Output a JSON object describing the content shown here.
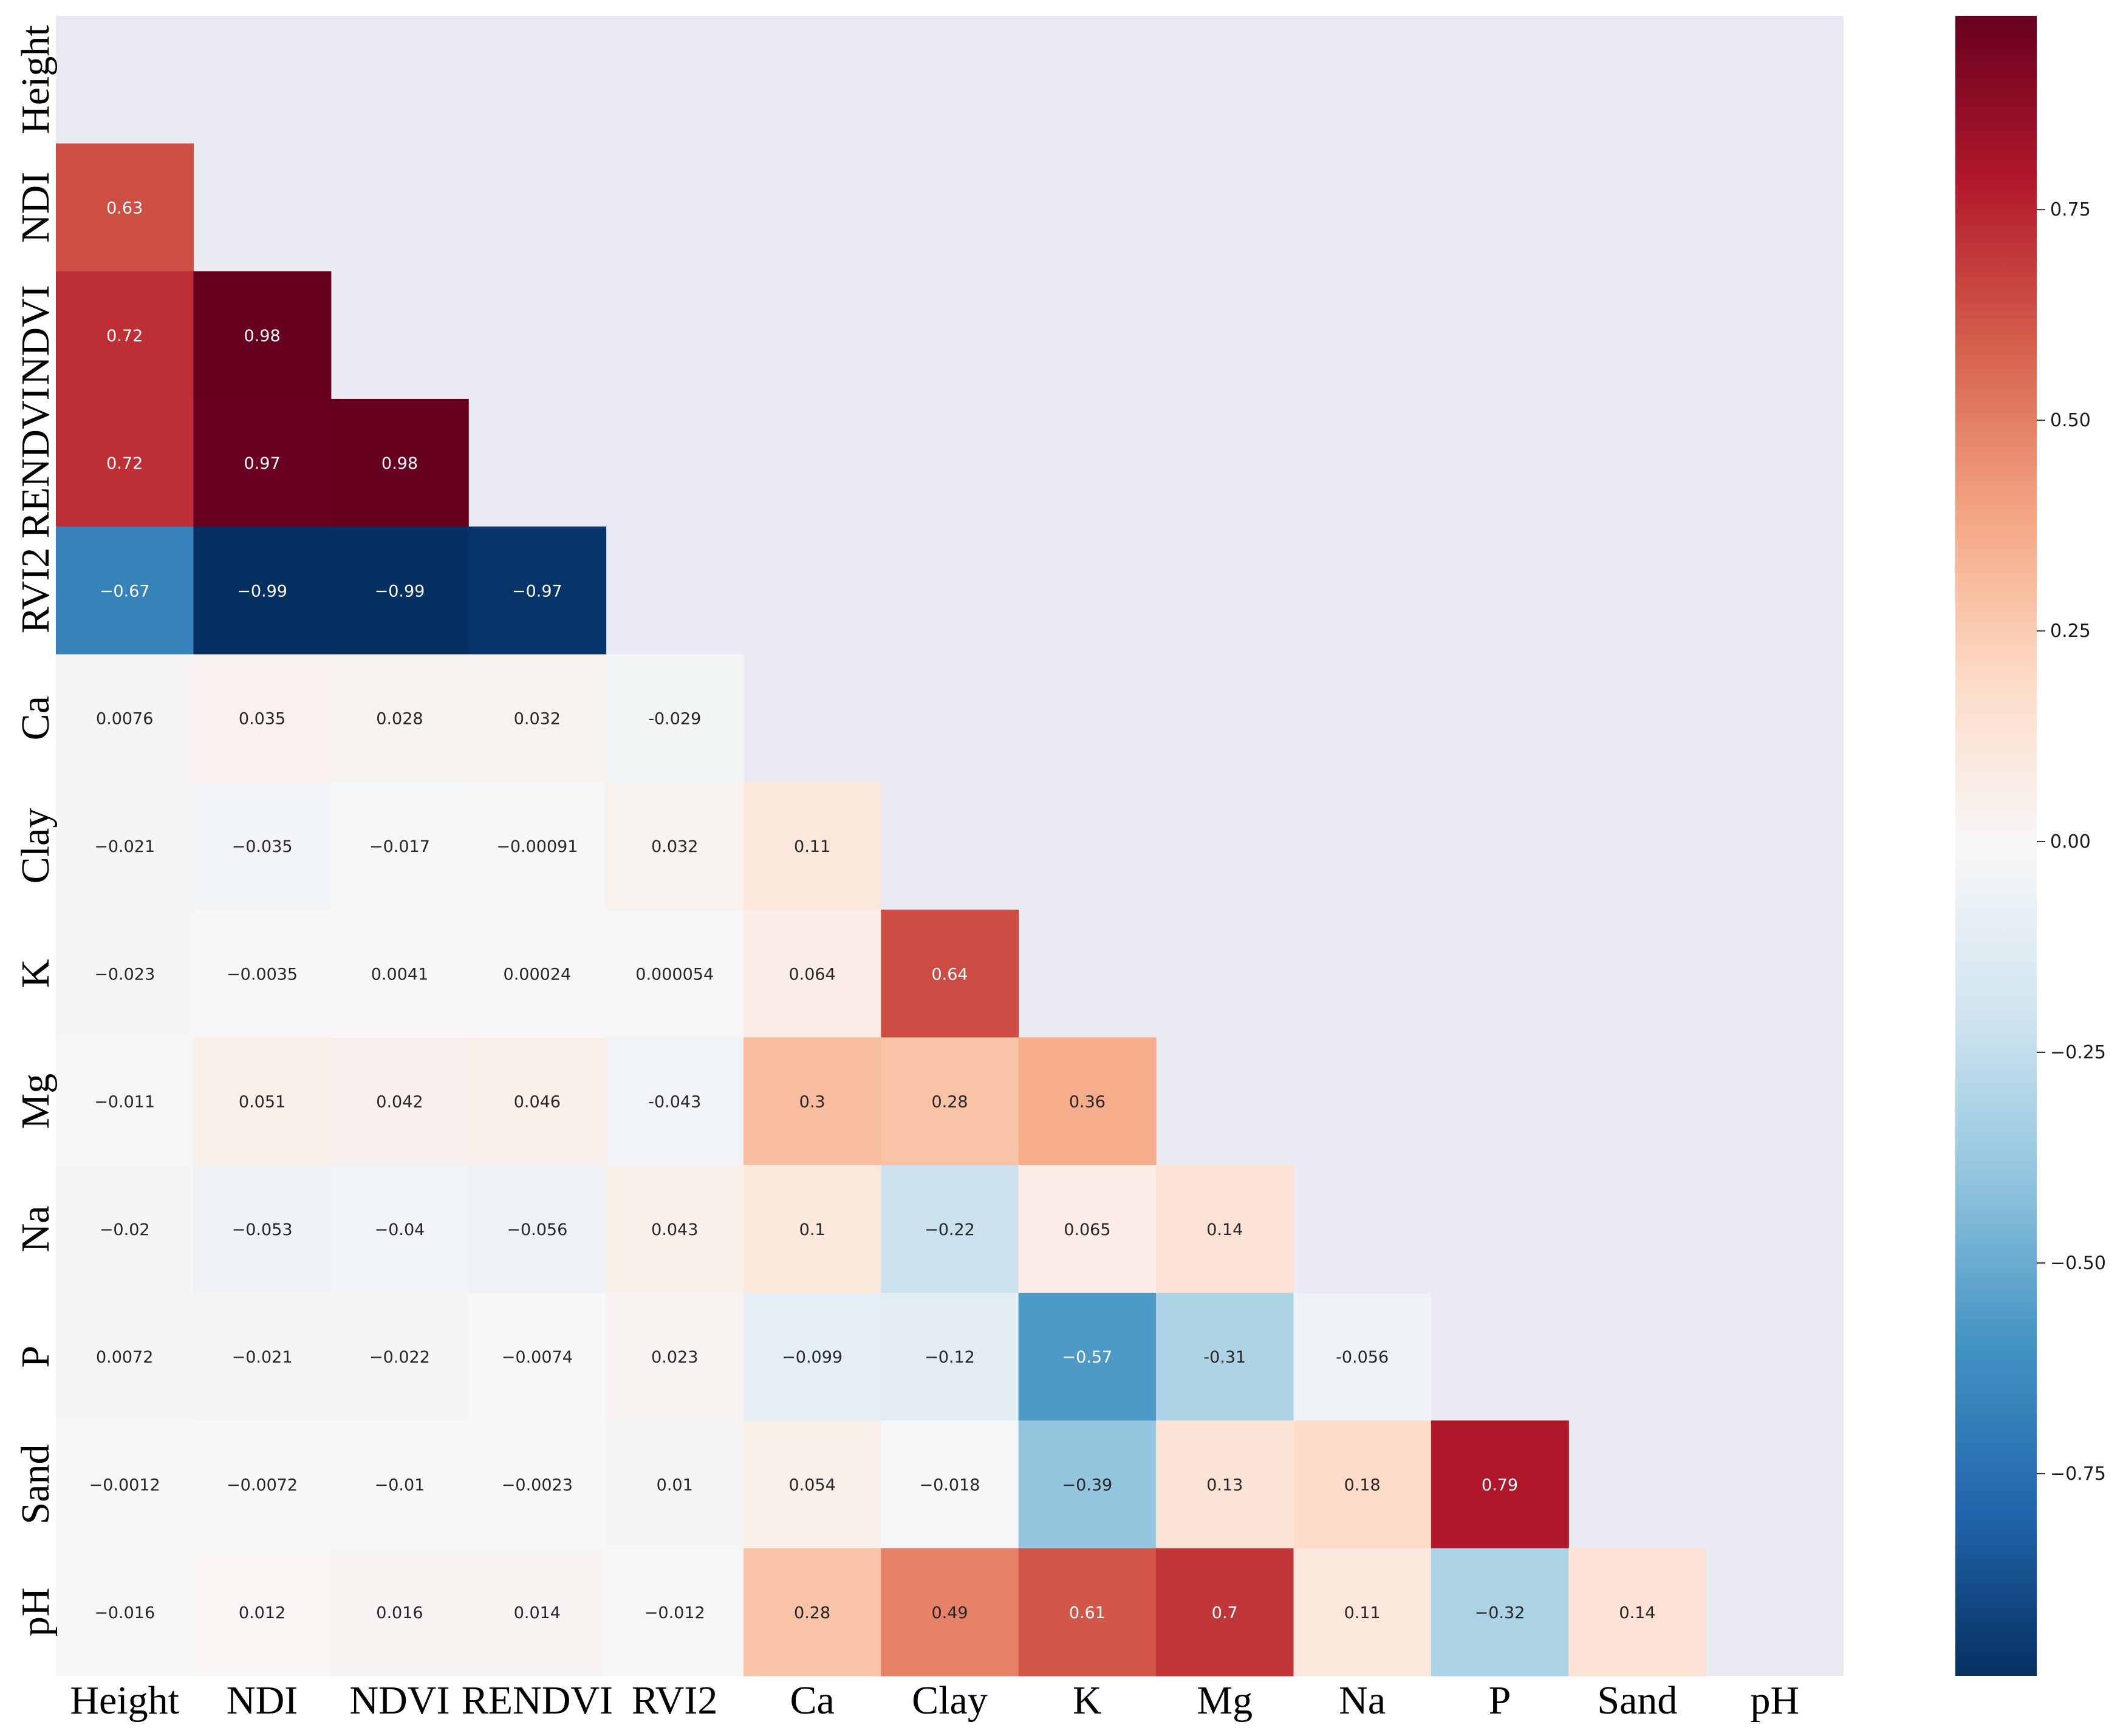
{
  "chart_data": {
    "type": "heatmap",
    "title": "",
    "xlabel": "",
    "ylabel": "",
    "variables": [
      "Height",
      "NDI",
      "NDVI",
      "RENDVI",
      "RVI2",
      "Ca",
      "Clay",
      "K",
      "Mg",
      "Na",
      "P",
      "Sand",
      "pH"
    ],
    "mask": "upper-triangle-including-diagonal",
    "values": [
      [
        null,
        null,
        null,
        null,
        null,
        null,
        null,
        null,
        null,
        null,
        null,
        null,
        null
      ],
      [
        0.63,
        null,
        null,
        null,
        null,
        null,
        null,
        null,
        null,
        null,
        null,
        null,
        null
      ],
      [
        0.72,
        0.98,
        null,
        null,
        null,
        null,
        null,
        null,
        null,
        null,
        null,
        null,
        null
      ],
      [
        0.72,
        0.97,
        0.98,
        null,
        null,
        null,
        null,
        null,
        null,
        null,
        null,
        null,
        null
      ],
      [
        -0.67,
        -0.99,
        -0.99,
        -0.97,
        null,
        null,
        null,
        null,
        null,
        null,
        null,
        null,
        null
      ],
      [
        0.0076,
        0.035,
        0.028,
        0.032,
        -0.029,
        null,
        null,
        null,
        null,
        null,
        null,
        null,
        null
      ],
      [
        -0.021,
        -0.035,
        -0.017,
        -0.00091,
        0.032,
        0.11,
        null,
        null,
        null,
        null,
        null,
        null,
        null
      ],
      [
        -0.023,
        -0.0035,
        0.0041,
        0.00024,
        5.4e-05,
        0.064,
        0.64,
        null,
        null,
        null,
        null,
        null,
        null
      ],
      [
        -0.011,
        0.051,
        0.042,
        0.046,
        -0.043,
        0.3,
        0.28,
        0.36,
        null,
        null,
        null,
        null,
        null
      ],
      [
        -0.02,
        -0.053,
        -0.04,
        -0.056,
        0.043,
        0.1,
        -0.22,
        0.065,
        0.14,
        null,
        null,
        null,
        null
      ],
      [
        0.0072,
        -0.021,
        -0.022,
        -0.0074,
        0.023,
        -0.099,
        -0.12,
        -0.57,
        -0.31,
        -0.056,
        null,
        null,
        null
      ],
      [
        -0.0012,
        -0.0072,
        -0.01,
        -0.0023,
        0.01,
        0.054,
        -0.018,
        -0.39,
        0.13,
        0.18,
        0.79,
        null,
        null
      ],
      [
        -0.016,
        0.012,
        0.016,
        0.014,
        -0.012,
        0.28,
        0.49,
        0.61,
        0.7,
        0.11,
        -0.32,
        0.14,
        null
      ]
    ],
    "labels": [
      [
        null,
        null,
        null,
        null,
        null,
        null,
        null,
        null,
        null,
        null,
        null,
        null,
        null
      ],
      [
        "0.63",
        null,
        null,
        null,
        null,
        null,
        null,
        null,
        null,
        null,
        null,
        null,
        null
      ],
      [
        "0.72",
        "0.98",
        null,
        null,
        null,
        null,
        null,
        null,
        null,
        null,
        null,
        null,
        null
      ],
      [
        "0.72",
        "0.97",
        "0.98",
        null,
        null,
        null,
        null,
        null,
        null,
        null,
        null,
        null,
        null
      ],
      [
        "−0.67",
        "−0.99",
        "−0.99",
        "−0.97",
        null,
        null,
        null,
        null,
        null,
        null,
        null,
        null,
        null
      ],
      [
        "0.0076",
        "0.035",
        "0.028",
        "0.032",
        "-0.029",
        null,
        null,
        null,
        null,
        null,
        null,
        null,
        null
      ],
      [
        "−0.021",
        "−0.035",
        "−0.017",
        "−0.00091",
        "0.032",
        "0.11",
        null,
        null,
        null,
        null,
        null,
        null,
        null
      ],
      [
        "−0.023",
        "−0.0035",
        "0.0041",
        "0.00024",
        "0.000054",
        "0.064",
        "0.64",
        null,
        null,
        null,
        null,
        null,
        null
      ],
      [
        "−0.011",
        "0.051",
        "0.042",
        "0.046",
        "-0.043",
        "0.3",
        "0.28",
        "0.36",
        null,
        null,
        null,
        null,
        null
      ],
      [
        "−0.02",
        "−0.053",
        "−0.04",
        "−0.056",
        "0.043",
        "0.1",
        "−0.22",
        "0.065",
        "0.14",
        null,
        null,
        null,
        null
      ],
      [
        "0.0072",
        "−0.021",
        "−0.022",
        "−0.0074",
        "0.023",
        "−0.099",
        "−0.12",
        "−0.57",
        "-0.31",
        "-0.056",
        null,
        null,
        null
      ],
      [
        "−0.0012",
        "−0.0072",
        "−0.01",
        "−0.0023",
        "0.01",
        "0.054",
        "−0.018",
        "−0.39",
        "0.13",
        "0.18",
        "0.79",
        null,
        null
      ],
      [
        "−0.016",
        "0.012",
        "0.016",
        "0.014",
        "−0.012",
        "0.28",
        "0.49",
        "0.61",
        "0.7",
        "0.11",
        "−0.32",
        "0.14",
        null
      ]
    ],
    "colorbar": {
      "colormap": "RdBu_r",
      "vmin": -0.99,
      "vmax": 0.98,
      "ticks": [
        0.75,
        0.5,
        0.25,
        0.0,
        -0.25,
        -0.5,
        -0.75
      ],
      "tick_labels": [
        "0.75",
        "0.50",
        "0.25",
        "0.00",
        "−0.25",
        "−0.50",
        "−0.75"
      ]
    },
    "masked_color": "#eaeaf2",
    "grid": false,
    "legend": "colorbar-right"
  }
}
